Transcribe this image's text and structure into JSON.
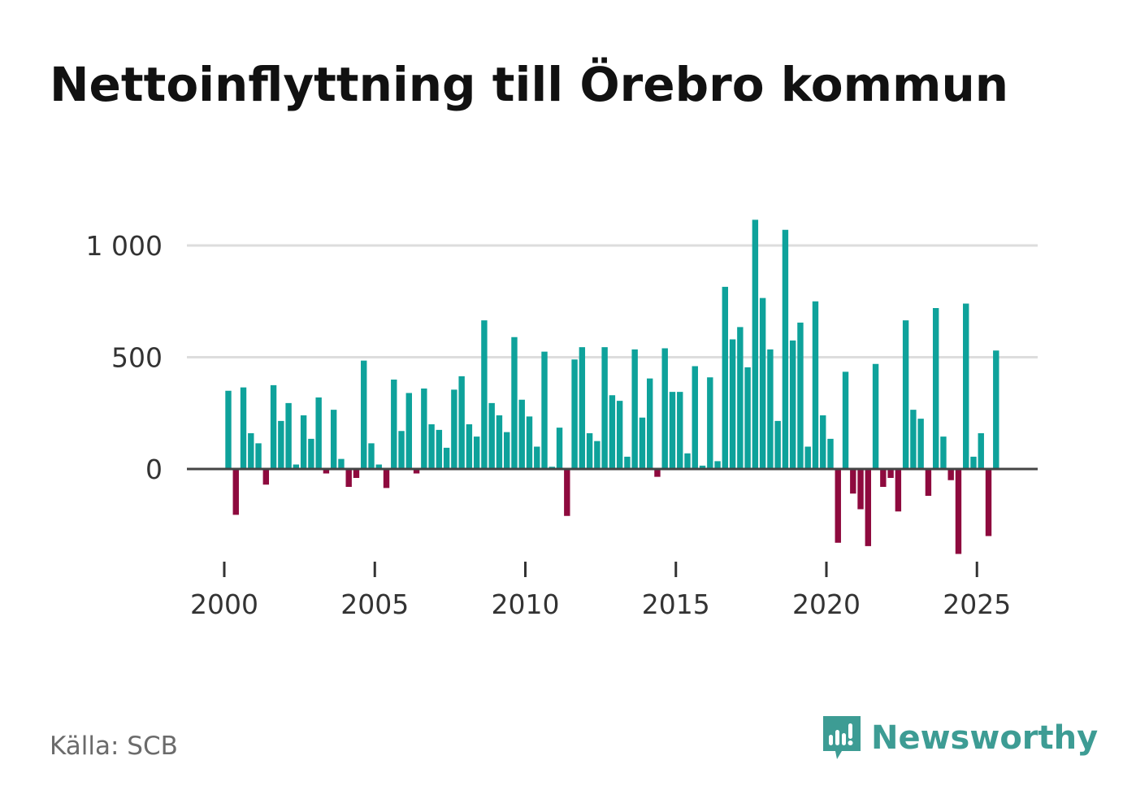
{
  "title": "Nettoinflyttning till Örebro kommun",
  "source": "Källa: SCB",
  "brand": {
    "name": "Newsworthy",
    "icon": "newsworthy-logo-icon",
    "color": "#3d9c94"
  },
  "colors": {
    "positive": "#0ea29b",
    "negative": "#8e0a3e",
    "gridline": "#dddddd",
    "zero_line": "#444444"
  },
  "chart_data": {
    "type": "bar",
    "title": "Nettoinflyttning till Örebro kommun",
    "xlabel": "",
    "ylabel": "",
    "x_start": 2000.0,
    "x_step": 0.25,
    "xlim": [
      1999.55,
      2027.1
    ],
    "ylim": [
      -450,
      1150
    ],
    "yticks": [
      0,
      500,
      1000
    ],
    "ytick_labels": [
      "0",
      "500",
      "1 000"
    ],
    "xticks": [
      2000,
      2005,
      2010,
      2015,
      2020,
      2025
    ],
    "xtick_labels": [
      "2000",
      "2005",
      "2010",
      "2015",
      "2020",
      "2025"
    ],
    "grid": true,
    "values": [
      350,
      -205,
      365,
      160,
      115,
      -70,
      375,
      215,
      295,
      20,
      240,
      135,
      320,
      -20,
      265,
      45,
      -80,
      -40,
      485,
      115,
      20,
      -85,
      400,
      170,
      340,
      -20,
      360,
      200,
      175,
      95,
      355,
      415,
      200,
      145,
      665,
      295,
      240,
      165,
      590,
      310,
      235,
      100,
      525,
      10,
      185,
      -210,
      490,
      545,
      160,
      125,
      545,
      330,
      305,
      55,
      535,
      230,
      405,
      -35,
      540,
      345,
      345,
      70,
      460,
      15,
      410,
      35,
      815,
      580,
      635,
      455,
      1115,
      765,
      535,
      215,
      1070,
      575,
      655,
      100,
      750,
      240,
      135,
      -330,
      435,
      -110,
      -180,
      -345,
      470,
      -80,
      -40,
      -190,
      665,
      265,
      225,
      -120,
      720,
      145,
      -50,
      -380,
      740,
      55,
      160,
      -300,
      530
    ]
  }
}
